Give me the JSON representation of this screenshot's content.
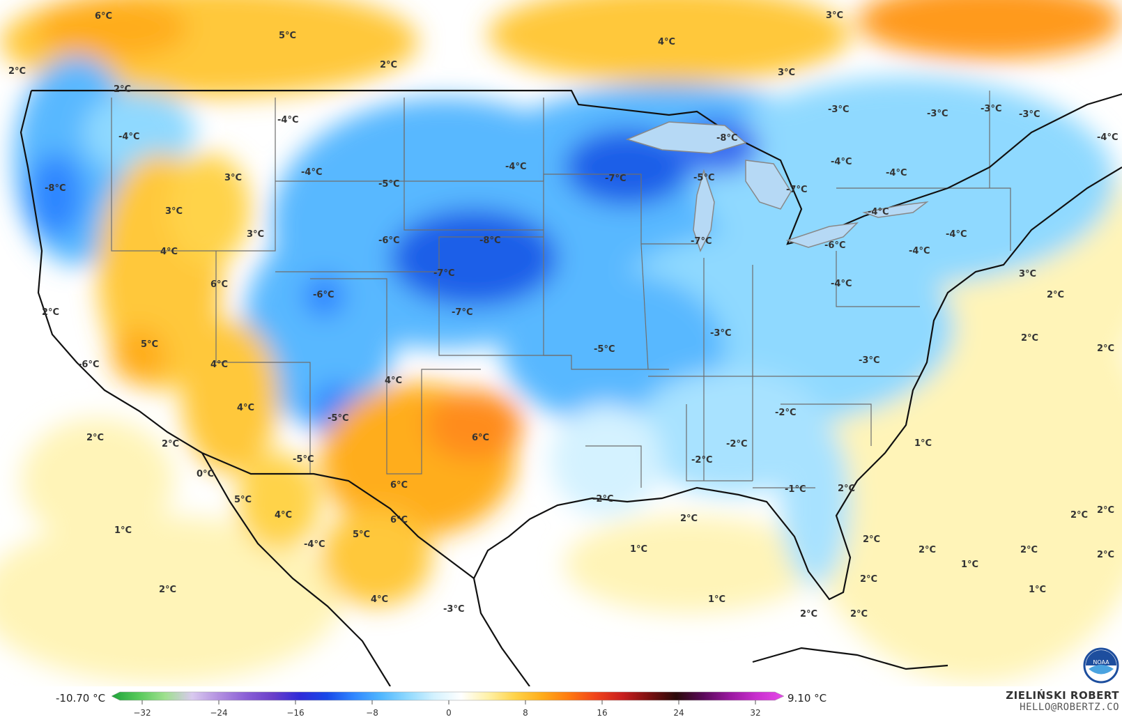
{
  "map": {
    "labels": [
      {
        "text": "6°C",
        "t": "w"
      },
      {
        "text": "5°C",
        "t": "w"
      },
      {
        "text": "2°C",
        "t": "w"
      },
      {
        "text": "2°C",
        "t": "c"
      },
      {
        "text": "2°C",
        "t": "w"
      },
      {
        "text": "4°C",
        "t": "w"
      },
      {
        "text": "3°C",
        "t": "w"
      },
      {
        "text": "3°C",
        "t": "w"
      },
      {
        "text": "-4°C",
        "t": "c"
      },
      {
        "text": "-4°C",
        "t": "c"
      },
      {
        "text": "-8°C",
        "t": "c"
      },
      {
        "text": "-4°C",
        "t": "c"
      },
      {
        "text": "3°C",
        "t": "w"
      },
      {
        "text": "3°C",
        "t": "w"
      },
      {
        "text": "3°C",
        "t": "w"
      },
      {
        "text": "4°C",
        "t": "w"
      },
      {
        "text": "-5°C",
        "t": "c"
      },
      {
        "text": "-4°C",
        "t": "c"
      },
      {
        "text": "-6°C",
        "t": "c"
      },
      {
        "text": "-8°C",
        "t": "c"
      },
      {
        "text": "-7°C",
        "t": "c"
      },
      {
        "text": "-8°C",
        "t": "c"
      },
      {
        "text": "-7°C",
        "t": "c"
      },
      {
        "text": "-5°C",
        "t": "c"
      },
      {
        "text": "-7°C",
        "t": "c"
      },
      {
        "text": "-7°C",
        "t": "c"
      },
      {
        "text": "-3°C",
        "t": "c"
      },
      {
        "text": "-3°C",
        "t": "c"
      },
      {
        "text": "-3°C",
        "t": "c"
      },
      {
        "text": "-3°C",
        "t": "c"
      },
      {
        "text": "-4°C",
        "t": "c"
      },
      {
        "text": "-4°C",
        "t": "c"
      },
      {
        "text": "-4°C",
        "t": "c"
      },
      {
        "text": "-4°C",
        "t": "c"
      },
      {
        "text": "-4°C",
        "t": "c"
      },
      {
        "text": "-6°C",
        "t": "c"
      },
      {
        "text": "-4°C",
        "t": "c"
      },
      {
        "text": "-4°C",
        "t": "c"
      },
      {
        "text": "3°C",
        "t": "w"
      },
      {
        "text": "2°C",
        "t": "w"
      },
      {
        "text": "2°C",
        "t": "w"
      },
      {
        "text": "2°C",
        "t": "w"
      },
      {
        "text": "6°C",
        "t": "w"
      },
      {
        "text": "-6°C",
        "t": "c"
      },
      {
        "text": "-7°C",
        "t": "c"
      },
      {
        "text": "2°C",
        "t": "c"
      },
      {
        "text": "5°C",
        "t": "w"
      },
      {
        "text": "-6°C",
        "t": "c"
      },
      {
        "text": "4°C",
        "t": "w"
      },
      {
        "text": "-5°C",
        "t": "c"
      },
      {
        "text": "-3°C",
        "t": "c"
      },
      {
        "text": "-3°C",
        "t": "c"
      },
      {
        "text": "4°C",
        "t": "w"
      },
      {
        "text": "4°C",
        "t": "w"
      },
      {
        "text": "-5°C",
        "t": "c"
      },
      {
        "text": "6°C",
        "t": "w"
      },
      {
        "text": "-2°C",
        "t": "c"
      },
      {
        "text": "2°C",
        "t": "w"
      },
      {
        "text": "2°C",
        "t": "w"
      },
      {
        "text": "-5°C",
        "t": "c"
      },
      {
        "text": "0°C",
        "t": "w"
      },
      {
        "text": "-2°C",
        "t": "c"
      },
      {
        "text": "-2°C",
        "t": "c"
      },
      {
        "text": "1°C",
        "t": "w"
      },
      {
        "text": "5°C",
        "t": "w"
      },
      {
        "text": "6°C",
        "t": "w"
      },
      {
        "text": "-1°C",
        "t": "c"
      },
      {
        "text": "2°C",
        "t": "w"
      },
      {
        "text": "4°C",
        "t": "w"
      },
      {
        "text": "6°C",
        "t": "w"
      },
      {
        "text": "-2°C",
        "t": "c"
      },
      {
        "text": "2°C",
        "t": "w"
      },
      {
        "text": "1°C",
        "t": "w"
      },
      {
        "text": "5°C",
        "t": "w"
      },
      {
        "text": "-4°C",
        "t": "c"
      },
      {
        "text": "1°C",
        "t": "w"
      },
      {
        "text": "2°C",
        "t": "w"
      },
      {
        "text": "2°C",
        "t": "w"
      },
      {
        "text": "2°C",
        "t": "w"
      },
      {
        "text": "2°C",
        "t": "w"
      },
      {
        "text": "2°C",
        "t": "w"
      },
      {
        "text": "1°C",
        "t": "w"
      },
      {
        "text": "2°C",
        "t": "w"
      },
      {
        "text": "2°C",
        "t": "w"
      },
      {
        "text": "1°C",
        "t": "w"
      },
      {
        "text": "1°C",
        "t": "w"
      },
      {
        "text": "4°C",
        "t": "w"
      },
      {
        "text": "-3°C",
        "t": "w"
      },
      {
        "text": "2°C",
        "t": "w"
      },
      {
        "text": "2°C",
        "t": "w"
      },
      {
        "text": "2°C",
        "t": "w"
      }
    ]
  },
  "legend": {
    "min_text": "-10.70 °C",
    "max_text": "9.10 °C",
    "ticks": [
      "−32",
      "−24",
      "−16",
      "−8",
      "0",
      "8",
      "16",
      "24",
      "32"
    ],
    "colors": [
      "#1fa33a",
      "#56c95a",
      "#9fe08f",
      "#d9c9ef",
      "#b28fe0",
      "#8a5fd6",
      "#6a3fc9",
      "#2f2ad8",
      "#1848e8",
      "#2f86ff",
      "#4fb6ff",
      "#8fd9ff",
      "#d4f2ff",
      "#ffffff",
      "#fff1a8",
      "#ffd34a",
      "#ffad1a",
      "#ff7a10",
      "#f0431a",
      "#c81e1e",
      "#7a1010",
      "#2a0a0a",
      "#5a0a5a",
      "#9a18a0",
      "#c92fcf",
      "#e54ae8"
    ]
  },
  "author": {
    "name": "ZIELIŃSKI ROBERT",
    "email": "HELLO@ROBERTZ.CO"
  },
  "logo": {
    "text": "NOAA"
  }
}
